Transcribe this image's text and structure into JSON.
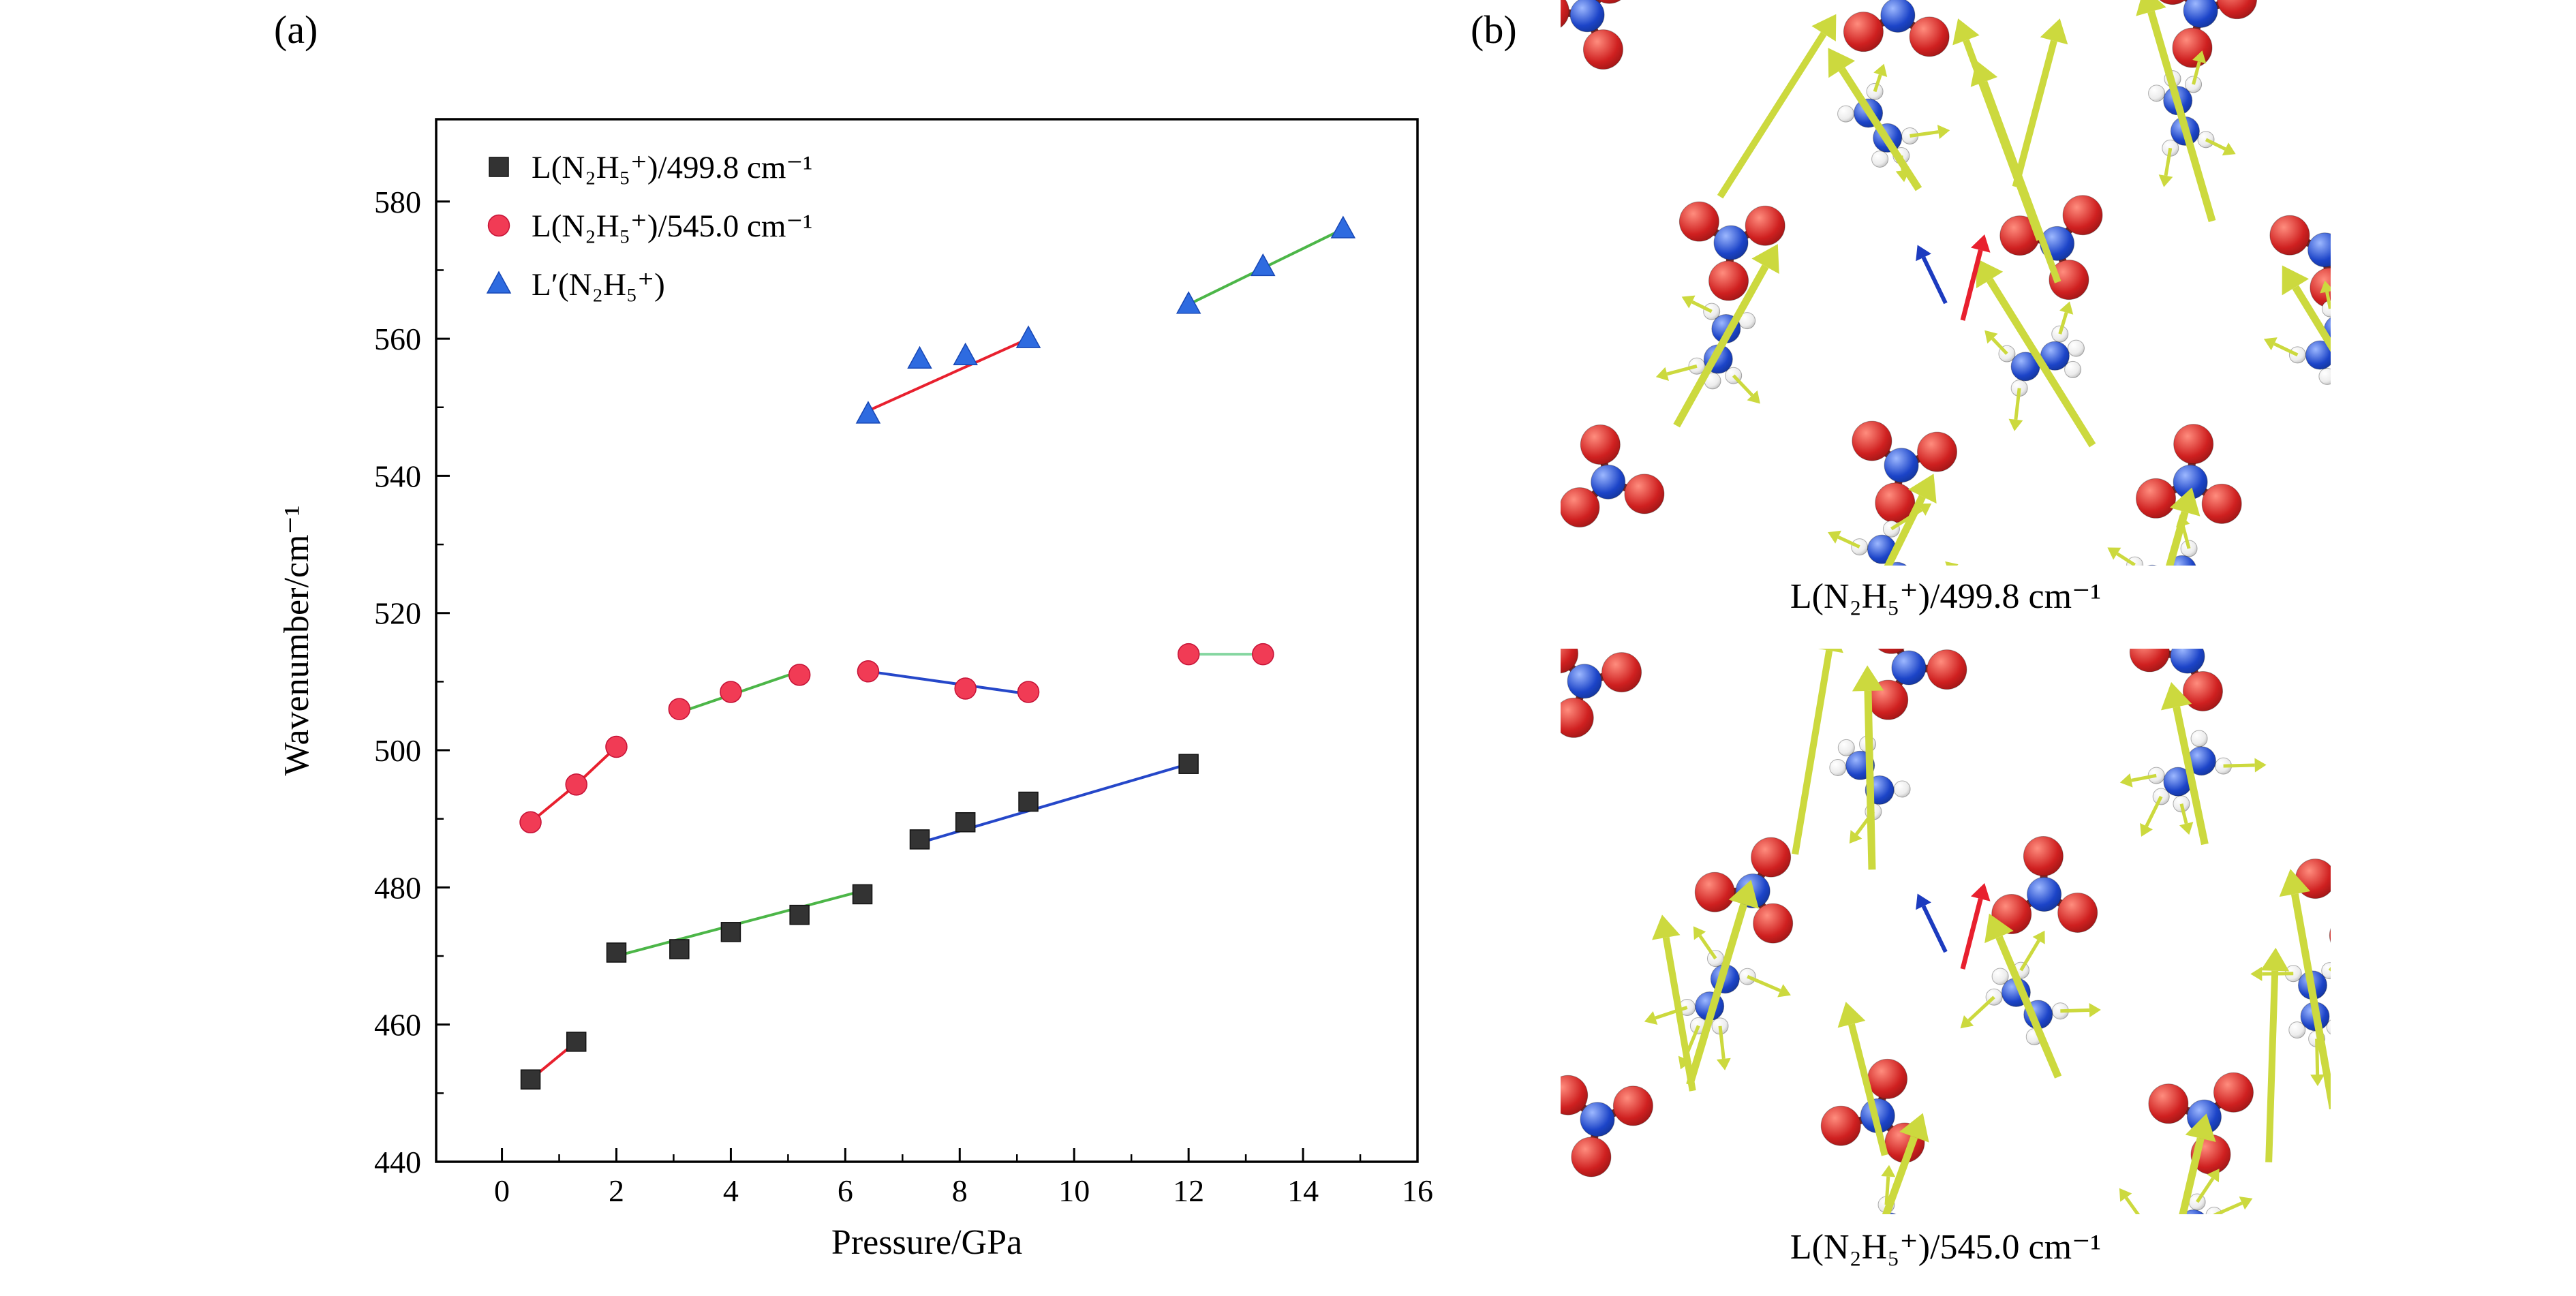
{
  "figure": {
    "panel_a_label": "(a)",
    "panel_b_label": "(b)"
  },
  "chart_data": {
    "type": "scatter",
    "title": "",
    "xlabel": "Pressure/GPa",
    "ylabel": "Wavenumber/cm⁻¹",
    "xlim": [
      0,
      16
    ],
    "ylim": [
      440,
      580
    ],
    "xticks": [
      0,
      2,
      4,
      6,
      8,
      10,
      12,
      14,
      16
    ],
    "yticks": [
      440,
      460,
      480,
      500,
      520,
      540,
      560,
      580
    ],
    "grid": false,
    "legend_position": "top-left-inside",
    "series": [
      {
        "name": "L(N₂H₅⁺)/499.8 cm⁻¹",
        "marker": "square",
        "marker_color": "#333333",
        "marker_edge": "#111111",
        "x": [
          0.5,
          1.3,
          2.0,
          3.1,
          4.0,
          5.2,
          6.3,
          7.3,
          8.1,
          9.2,
          12.0
        ],
        "y": [
          452,
          457.5,
          470.5,
          471,
          473.5,
          476,
          479,
          487,
          489.5,
          492.5,
          498
        ],
        "trend_segments": [
          {
            "color": "#e8202e",
            "x": [
              0.5,
              1.3
            ],
            "y": [
              452,
              457.5
            ]
          },
          {
            "color": "#4cb648",
            "x": [
              2.0,
              6.3
            ],
            "y": [
              470,
              479.5
            ]
          },
          {
            "color": "#2547c9",
            "x": [
              7.3,
              12.0
            ],
            "y": [
              486.5,
              498
            ]
          }
        ]
      },
      {
        "name": "L(N₂H₅⁺)/545.0 cm⁻¹",
        "marker": "circle",
        "marker_color": "#f13b55",
        "marker_edge": "#c51236",
        "x": [
          0.5,
          1.3,
          2.0,
          3.1,
          4.0,
          5.2,
          6.4,
          8.1,
          9.2,
          12.0,
          13.3
        ],
        "y": [
          489.5,
          495,
          500.5,
          506,
          508.5,
          511,
          511.5,
          509,
          508.5,
          514,
          514
        ],
        "trend_segments": [
          {
            "color": "#e8202e",
            "x": [
              0.5,
              1.3,
              2.0
            ],
            "y": [
              489.5,
              495,
              500.5
            ]
          },
          {
            "color": "#4cb648",
            "x": [
              3.1,
              5.2
            ],
            "y": [
              505.5,
              511.5
            ]
          },
          {
            "color": "#2547c9",
            "x": [
              6.4,
              9.2
            ],
            "y": [
              511.5,
              508.2
            ]
          },
          {
            "color": "#85d6a0",
            "x": [
              12.0,
              13.3
            ],
            "y": [
              514,
              514
            ]
          }
        ]
      },
      {
        "name": "L′(N₂H₅⁺)",
        "marker": "triangle",
        "marker_color": "#2e6be0",
        "marker_edge": "#1747b5",
        "x": [
          6.4,
          7.3,
          8.1,
          9.2,
          12.0,
          13.3,
          14.7
        ],
        "y": [
          549,
          557,
          557.5,
          560,
          565,
          570.5,
          576
        ],
        "trend_segments": [
          {
            "color": "#e8202e",
            "x": [
              6.4,
              9.2
            ],
            "y": [
              549.5,
              560
            ]
          },
          {
            "color": "#4cb648",
            "x": [
              12.0,
              14.7
            ],
            "y": [
              565,
              576
            ]
          }
        ]
      }
    ]
  },
  "panel_b": {
    "images": [
      {
        "caption": "L(N₂H₅⁺)/499.8 cm⁻¹"
      },
      {
        "caption": "L(N₂H₅⁺)/545.0 cm⁻¹"
      }
    ],
    "colors": {
      "nitrogen": "#1c44c8",
      "oxygen": "#cf2020",
      "hydrogen": "#ececec",
      "arrow": "#ccd93e",
      "highlight_arrow_red": "#e8202e",
      "highlight_arrow_blue": "#1c3bbf"
    }
  }
}
